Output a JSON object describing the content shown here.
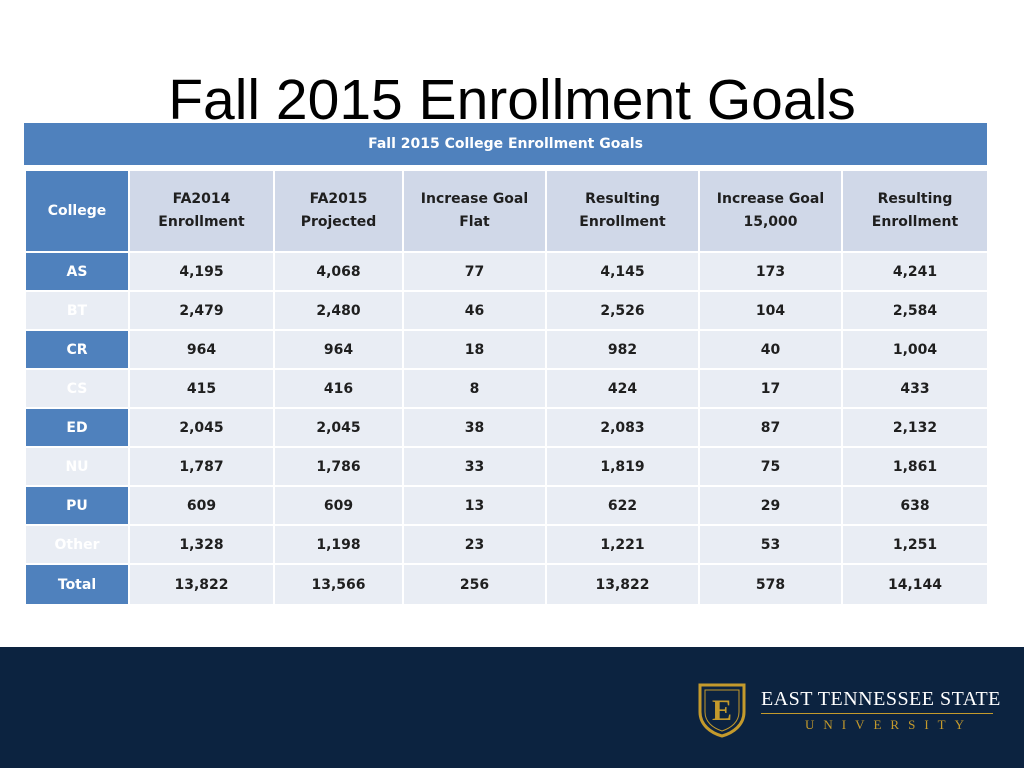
{
  "title": "Fall 2015 Enrollment Goals",
  "table": {
    "caption": "Fall 2015 College Enrollment Goals",
    "headers": [
      {
        "line1": "College",
        "line2": ""
      },
      {
        "line1": "FA2014",
        "line2": "Enrollment"
      },
      {
        "line1": "FA2015",
        "line2": "Projected"
      },
      {
        "line1": "Increase Goal Flat",
        "line2": ""
      },
      {
        "line1": "Resulting",
        "line2": "Enrollment"
      },
      {
        "line1": "Increase Goal",
        "line2": "15,000"
      },
      {
        "line1": "Resulting",
        "line2": "Enrollment"
      }
    ],
    "rows": [
      [
        "AS",
        "4,195",
        "4,068",
        "77",
        "4,145",
        "173",
        "4,241"
      ],
      [
        "BT",
        "2,479",
        "2,480",
        "46",
        "2,526",
        "104",
        "2,584"
      ],
      [
        "CR",
        "964",
        "964",
        "18",
        "982",
        "40",
        "1,004"
      ],
      [
        "CS",
        "415",
        "416",
        "8",
        "424",
        "17",
        "433"
      ],
      [
        "ED",
        "2,045",
        "2,045",
        "38",
        "2,083",
        "87",
        "2,132"
      ],
      [
        "NU",
        "1,787",
        "1,786",
        "33",
        "1,819",
        "75",
        "1,861"
      ],
      [
        "PU",
        "609",
        "609",
        "13",
        "622",
        "29",
        "638"
      ],
      [
        "Other",
        "1,328",
        "1,198",
        "23",
        "1,221",
        "53",
        "1,251"
      ],
      [
        "Total",
        "13,822",
        "13,566",
        "256",
        "13,822",
        "578",
        "14,144"
      ]
    ]
  },
  "footer": {
    "logo_letter": "E",
    "university_line1": "EAST TENNESSEE STATE",
    "university_line2": "UNIVERSITY",
    "colors": {
      "navy": "#0c2340",
      "gold": "#c49a2c"
    }
  }
}
